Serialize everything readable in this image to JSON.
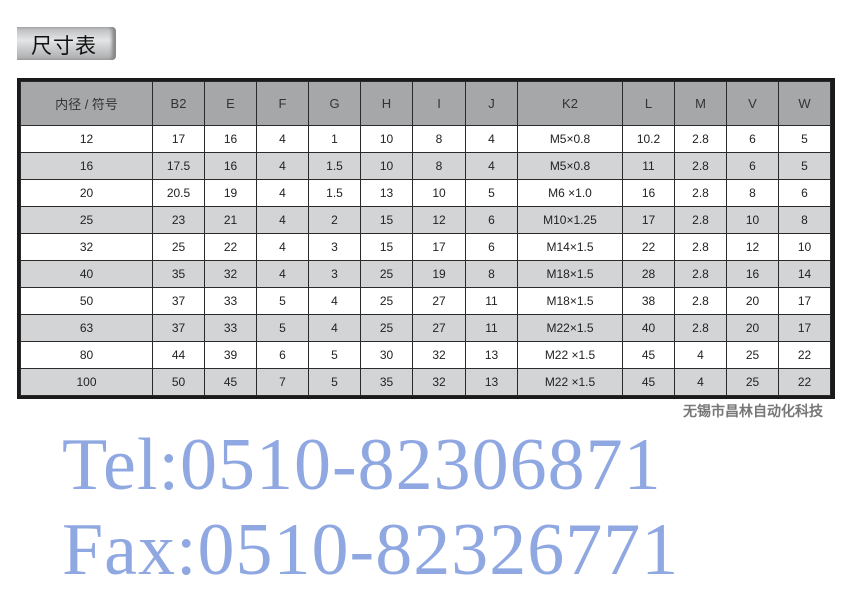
{
  "title": "尺寸表",
  "headers": [
    "内径 / 符号",
    "B2",
    "E",
    "F",
    "G",
    "H",
    "I",
    "J",
    "K2",
    "L",
    "M",
    "V",
    "W"
  ],
  "rows": [
    [
      "12",
      "17",
      "16",
      "4",
      "1",
      "10",
      "8",
      "4",
      "M5×0.8",
      "10.2",
      "2.8",
      "6",
      "5"
    ],
    [
      "16",
      "17.5",
      "16",
      "4",
      "1.5",
      "10",
      "8",
      "4",
      "M5×0.8",
      "11",
      "2.8",
      "6",
      "5"
    ],
    [
      "20",
      "20.5",
      "19",
      "4",
      "1.5",
      "13",
      "10",
      "5",
      "M6 ×1.0",
      "16",
      "2.8",
      "8",
      "6"
    ],
    [
      "25",
      "23",
      "21",
      "4",
      "2",
      "15",
      "12",
      "6",
      "M10×1.25",
      "17",
      "2.8",
      "10",
      "8"
    ],
    [
      "32",
      "25",
      "22",
      "4",
      "3",
      "15",
      "17",
      "6",
      "M14×1.5",
      "22",
      "2.8",
      "12",
      "10"
    ],
    [
      "40",
      "35",
      "32",
      "4",
      "3",
      "25",
      "19",
      "8",
      "M18×1.5",
      "28",
      "2.8",
      "16",
      "14"
    ],
    [
      "50",
      "37",
      "33",
      "5",
      "4",
      "25",
      "27",
      "11",
      "M18×1.5",
      "38",
      "2.8",
      "20",
      "17"
    ],
    [
      "63",
      "37",
      "33",
      "5",
      "4",
      "25",
      "27",
      "11",
      "M22×1.5",
      "40",
      "2.8",
      "20",
      "17"
    ],
    [
      "80",
      "44",
      "39",
      "6",
      "5",
      "30",
      "32",
      "13",
      "M22 ×1.5",
      "45",
      "4",
      "25",
      "22"
    ],
    [
      "100",
      "50",
      "45",
      "7",
      "5",
      "35",
      "32",
      "13",
      "M22 ×1.5",
      "45",
      "4",
      "25",
      "22"
    ]
  ],
  "watermark": {
    "tel": "Tel:0510-82306871",
    "fax": "Fax:0510-82326771",
    "company": "无锡市昌林自动化科技"
  },
  "colors": {
    "header_bg": "#a6a7a9",
    "alt_row_bg": "#d3d4d6",
    "watermark": "#466ecd"
  }
}
